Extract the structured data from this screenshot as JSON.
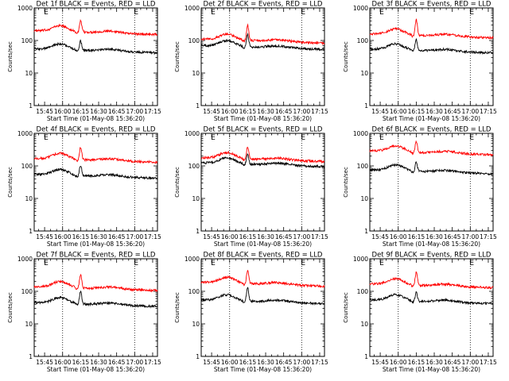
{
  "chart_data": [
    {
      "type": "line",
      "title": "Det 1f BLACK = Events, RED = LLD",
      "xlabel": "Start Time (01-May-08 15:36:20)",
      "ylabel": "Counts/sec",
      "x_ticks": [
        "15:45",
        "16:00",
        "16:15",
        "16:30",
        "16:45",
        "17:00",
        "17:15"
      ],
      "y_ticks": [
        "1",
        "10",
        "100",
        "1000"
      ],
      "y_scale": "log",
      "ylim": [
        1,
        1000
      ],
      "markers": [
        "E",
        "E"
      ],
      "series": [
        {
          "color": "#ff0000",
          "baseline": 200,
          "peak": 430
        },
        {
          "color": "#000000",
          "baseline": 55,
          "peak": 105
        }
      ]
    },
    {
      "type": "line",
      "title": "Det 2f BLACK = Events, RED = LLD",
      "xlabel": "Start Time (01-May-08 15:36:20)",
      "ylabel": "Counts/sec",
      "x_ticks": [
        "15:45",
        "16:00",
        "16:15",
        "16:30",
        "16:45",
        "17:00",
        "17:15"
      ],
      "y_ticks": [
        "1",
        "10",
        "100",
        "1000"
      ],
      "y_scale": "log",
      "ylim": [
        1,
        1000
      ],
      "markers": [
        "E",
        "E"
      ],
      "series": [
        {
          "color": "#ff0000",
          "baseline": 110,
          "peak": 330
        },
        {
          "color": "#000000",
          "baseline": 70,
          "peak": 170
        }
      ]
    },
    {
      "type": "line",
      "title": "Det 3f BLACK = Events, RED = LLD",
      "xlabel": "Start Time (01-May-08 15:36:20)",
      "ylabel": "Counts/sec",
      "x_ticks": [
        "15:45",
        "16:00",
        "16:15",
        "16:30",
        "16:45",
        "17:00",
        "17:15"
      ],
      "y_ticks": [
        "1",
        "10",
        "100",
        "1000"
      ],
      "y_scale": "log",
      "ylim": [
        1,
        1000
      ],
      "markers": [
        "E",
        "E"
      ],
      "series": [
        {
          "color": "#ff0000",
          "baseline": 160,
          "peak": 470
        },
        {
          "color": "#000000",
          "baseline": 55,
          "peak": 115
        }
      ]
    },
    {
      "type": "line",
      "title": "Det 4f BLACK = Events, RED = LLD",
      "xlabel": "Start Time (01-May-08 15:36:20)",
      "ylabel": "Counts/sec",
      "x_ticks": [
        "15:45",
        "16:00",
        "16:15",
        "16:30",
        "16:45",
        "17:00",
        "17:15"
      ],
      "y_ticks": [
        "1",
        "10",
        "100",
        "1000"
      ],
      "y_scale": "log",
      "ylim": [
        1,
        1000
      ],
      "markers": [
        "E",
        "E"
      ],
      "series": [
        {
          "color": "#ff0000",
          "baseline": 170,
          "peak": 420
        },
        {
          "color": "#000000",
          "baseline": 55,
          "peak": 115
        }
      ]
    },
    {
      "type": "line",
      "title": "Det 5f BLACK = Events, RED = LLD",
      "xlabel": "Start Time (01-May-08 15:36:20)",
      "ylabel": "Counts/sec",
      "x_ticks": [
        "15:45",
        "16:00",
        "16:15",
        "16:30",
        "16:45",
        "17:00",
        "17:15"
      ],
      "y_ticks": [
        "1",
        "10",
        "100",
        "1000"
      ],
      "y_scale": "log",
      "ylim": [
        1,
        1000
      ],
      "markers": [
        "E",
        "E"
      ],
      "series": [
        {
          "color": "#ff0000",
          "baseline": 180,
          "peak": 420
        },
        {
          "color": "#000000",
          "baseline": 125,
          "peak": 260
        }
      ]
    },
    {
      "type": "line",
      "title": "Det 6f BLACK = Events, RED = LLD",
      "xlabel": "Start Time (01-May-08 15:36:20)",
      "ylabel": "Counts/sec",
      "x_ticks": [
        "15:45",
        "16:00",
        "16:15",
        "16:30",
        "16:45",
        "17:00",
        "17:15"
      ],
      "y_ticks": [
        "1",
        "10",
        "100",
        "1000"
      ],
      "y_scale": "log",
      "ylim": [
        1,
        1000
      ],
      "markers": [
        "E",
        "E"
      ],
      "series": [
        {
          "color": "#ff0000",
          "baseline": 290,
          "peak": 600
        },
        {
          "color": "#000000",
          "baseline": 75,
          "peak": 140
        }
      ]
    },
    {
      "type": "line",
      "title": "Det 7f BLACK = Events, RED = LLD",
      "xlabel": "Start Time (01-May-08 15:36:20)",
      "ylabel": "Counts/sec",
      "x_ticks": [
        "15:45",
        "16:00",
        "16:15",
        "16:30",
        "16:45",
        "17:00",
        "17:15"
      ],
      "y_ticks": [
        "1",
        "10",
        "100",
        "1000"
      ],
      "y_scale": "log",
      "ylim": [
        1,
        1000
      ],
      "markers": [
        "E",
        "E"
      ],
      "series": [
        {
          "color": "#ff0000",
          "baseline": 140,
          "peak": 360
        },
        {
          "color": "#000000",
          "baseline": 45,
          "peak": 110
        }
      ]
    },
    {
      "type": "line",
      "title": "Det 8f BLACK = Events, RED = LLD",
      "xlabel": "Start Time (01-May-08 15:36:20)",
      "ylabel": "Counts/sec",
      "x_ticks": [
        "15:45",
        "16:00",
        "16:15",
        "16:30",
        "16:45",
        "17:00",
        "17:15"
      ],
      "y_ticks": [
        "1",
        "10",
        "100",
        "1000"
      ],
      "y_scale": "log",
      "ylim": [
        1,
        1000
      ],
      "markers": [
        "E",
        "E"
      ],
      "series": [
        {
          "color": "#ff0000",
          "baseline": 190,
          "peak": 470
        },
        {
          "color": "#000000",
          "baseline": 55,
          "peak": 140
        }
      ]
    },
    {
      "type": "line",
      "title": "Det 9f BLACK = Events, RED = LLD",
      "xlabel": "Start Time (01-May-08 15:36:20)",
      "ylabel": "Counts/sec",
      "x_ticks": [
        "15:45",
        "16:00",
        "16:15",
        "16:30",
        "16:45",
        "17:00",
        "17:15"
      ],
      "y_ticks": [
        "1",
        "10",
        "100",
        "1000"
      ],
      "y_scale": "log",
      "ylim": [
        1,
        1000
      ],
      "markers": [
        "E",
        "E"
      ],
      "series": [
        {
          "color": "#ff0000",
          "baseline": 170,
          "peak": 410
        },
        {
          "color": "#000000",
          "baseline": 55,
          "peak": 100
        }
      ]
    }
  ]
}
